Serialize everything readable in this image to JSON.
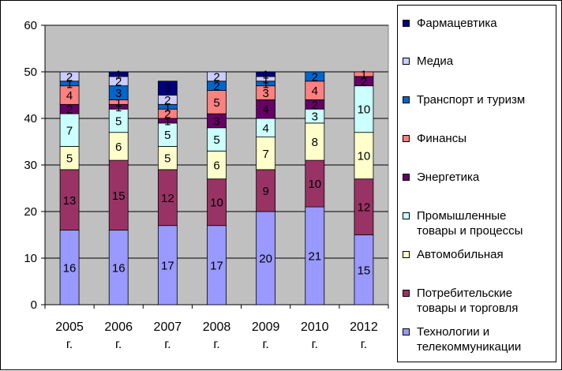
{
  "chart_data": {
    "type": "bar",
    "stacked": true,
    "categories": [
      [
        "2005",
        "г."
      ],
      [
        "2006",
        "г."
      ],
      [
        "2007",
        "г."
      ],
      [
        "2008",
        "г."
      ],
      [
        "2009",
        "г."
      ],
      [
        "2010",
        "г."
      ],
      [
        "2012",
        "г."
      ]
    ],
    "ylim": [
      0,
      60
    ],
    "yticks": [
      0,
      10,
      20,
      30,
      40,
      50,
      60
    ],
    "grid": "horizontal",
    "legend_position": "right",
    "plot_background": "#c0c0c0",
    "series": [
      {
        "name": "Технологии и телекоммуникации",
        "color": "#9999ff",
        "values": [
          16,
          16,
          17,
          17,
          20,
          21,
          15
        ]
      },
      {
        "name": "Потребительские товары и торговля",
        "color": "#993366",
        "values": [
          13,
          15,
          12,
          10,
          9,
          10,
          12
        ]
      },
      {
        "name": "Автомобильная",
        "color": "#ffffcc",
        "values": [
          5,
          6,
          5,
          6,
          7,
          8,
          10
        ]
      },
      {
        "name": "Промышленные товары и процессы",
        "color": "#ccffff",
        "values": [
          7,
          5,
          5,
          5,
          4,
          3,
          10
        ]
      },
      {
        "name": "Энергетика",
        "color": "#660066",
        "values": [
          2,
          1,
          1,
          3,
          4,
          2,
          2
        ]
      },
      {
        "name": "Финансы",
        "color": "#ff8080",
        "values": [
          4,
          1,
          2,
          5,
          3,
          4,
          1
        ]
      },
      {
        "name": "Транспорт и туризм",
        "color": "#0066cc",
        "values": [
          1,
          3,
          1,
          2,
          1,
          2,
          0
        ]
      },
      {
        "name": "Медиа",
        "color": "#ccccff",
        "values": [
          2,
          2,
          2,
          2,
          1,
          0,
          0
        ]
      },
      {
        "name": "Фармацевтика",
        "color": "#000080",
        "values": [
          0,
          1,
          3,
          0,
          1,
          0,
          0
        ]
      }
    ]
  },
  "legend": {
    "items": [
      {
        "lines": [
          "Фармацевтика"
        ],
        "color": "#000080"
      },
      {
        "lines": [
          "Медиа"
        ],
        "color": "#ccccff"
      },
      {
        "lines": [
          "Транспорт и туризм"
        ],
        "color": "#0066cc"
      },
      {
        "lines": [
          "Финансы"
        ],
        "color": "#ff8080"
      },
      {
        "lines": [
          "Энергетика"
        ],
        "color": "#660066"
      },
      {
        "lines": [
          "Промышленные",
          "товары и процессы"
        ],
        "color": "#ccffff"
      },
      {
        "lines": [
          "Автомобильная"
        ],
        "color": "#ffffcc"
      },
      {
        "lines": [
          "Потребительские",
          "товары и торговля"
        ],
        "color": "#993366"
      },
      {
        "lines": [
          "Технологии и",
          "телекоммуникации"
        ],
        "color": "#9999ff"
      }
    ]
  }
}
